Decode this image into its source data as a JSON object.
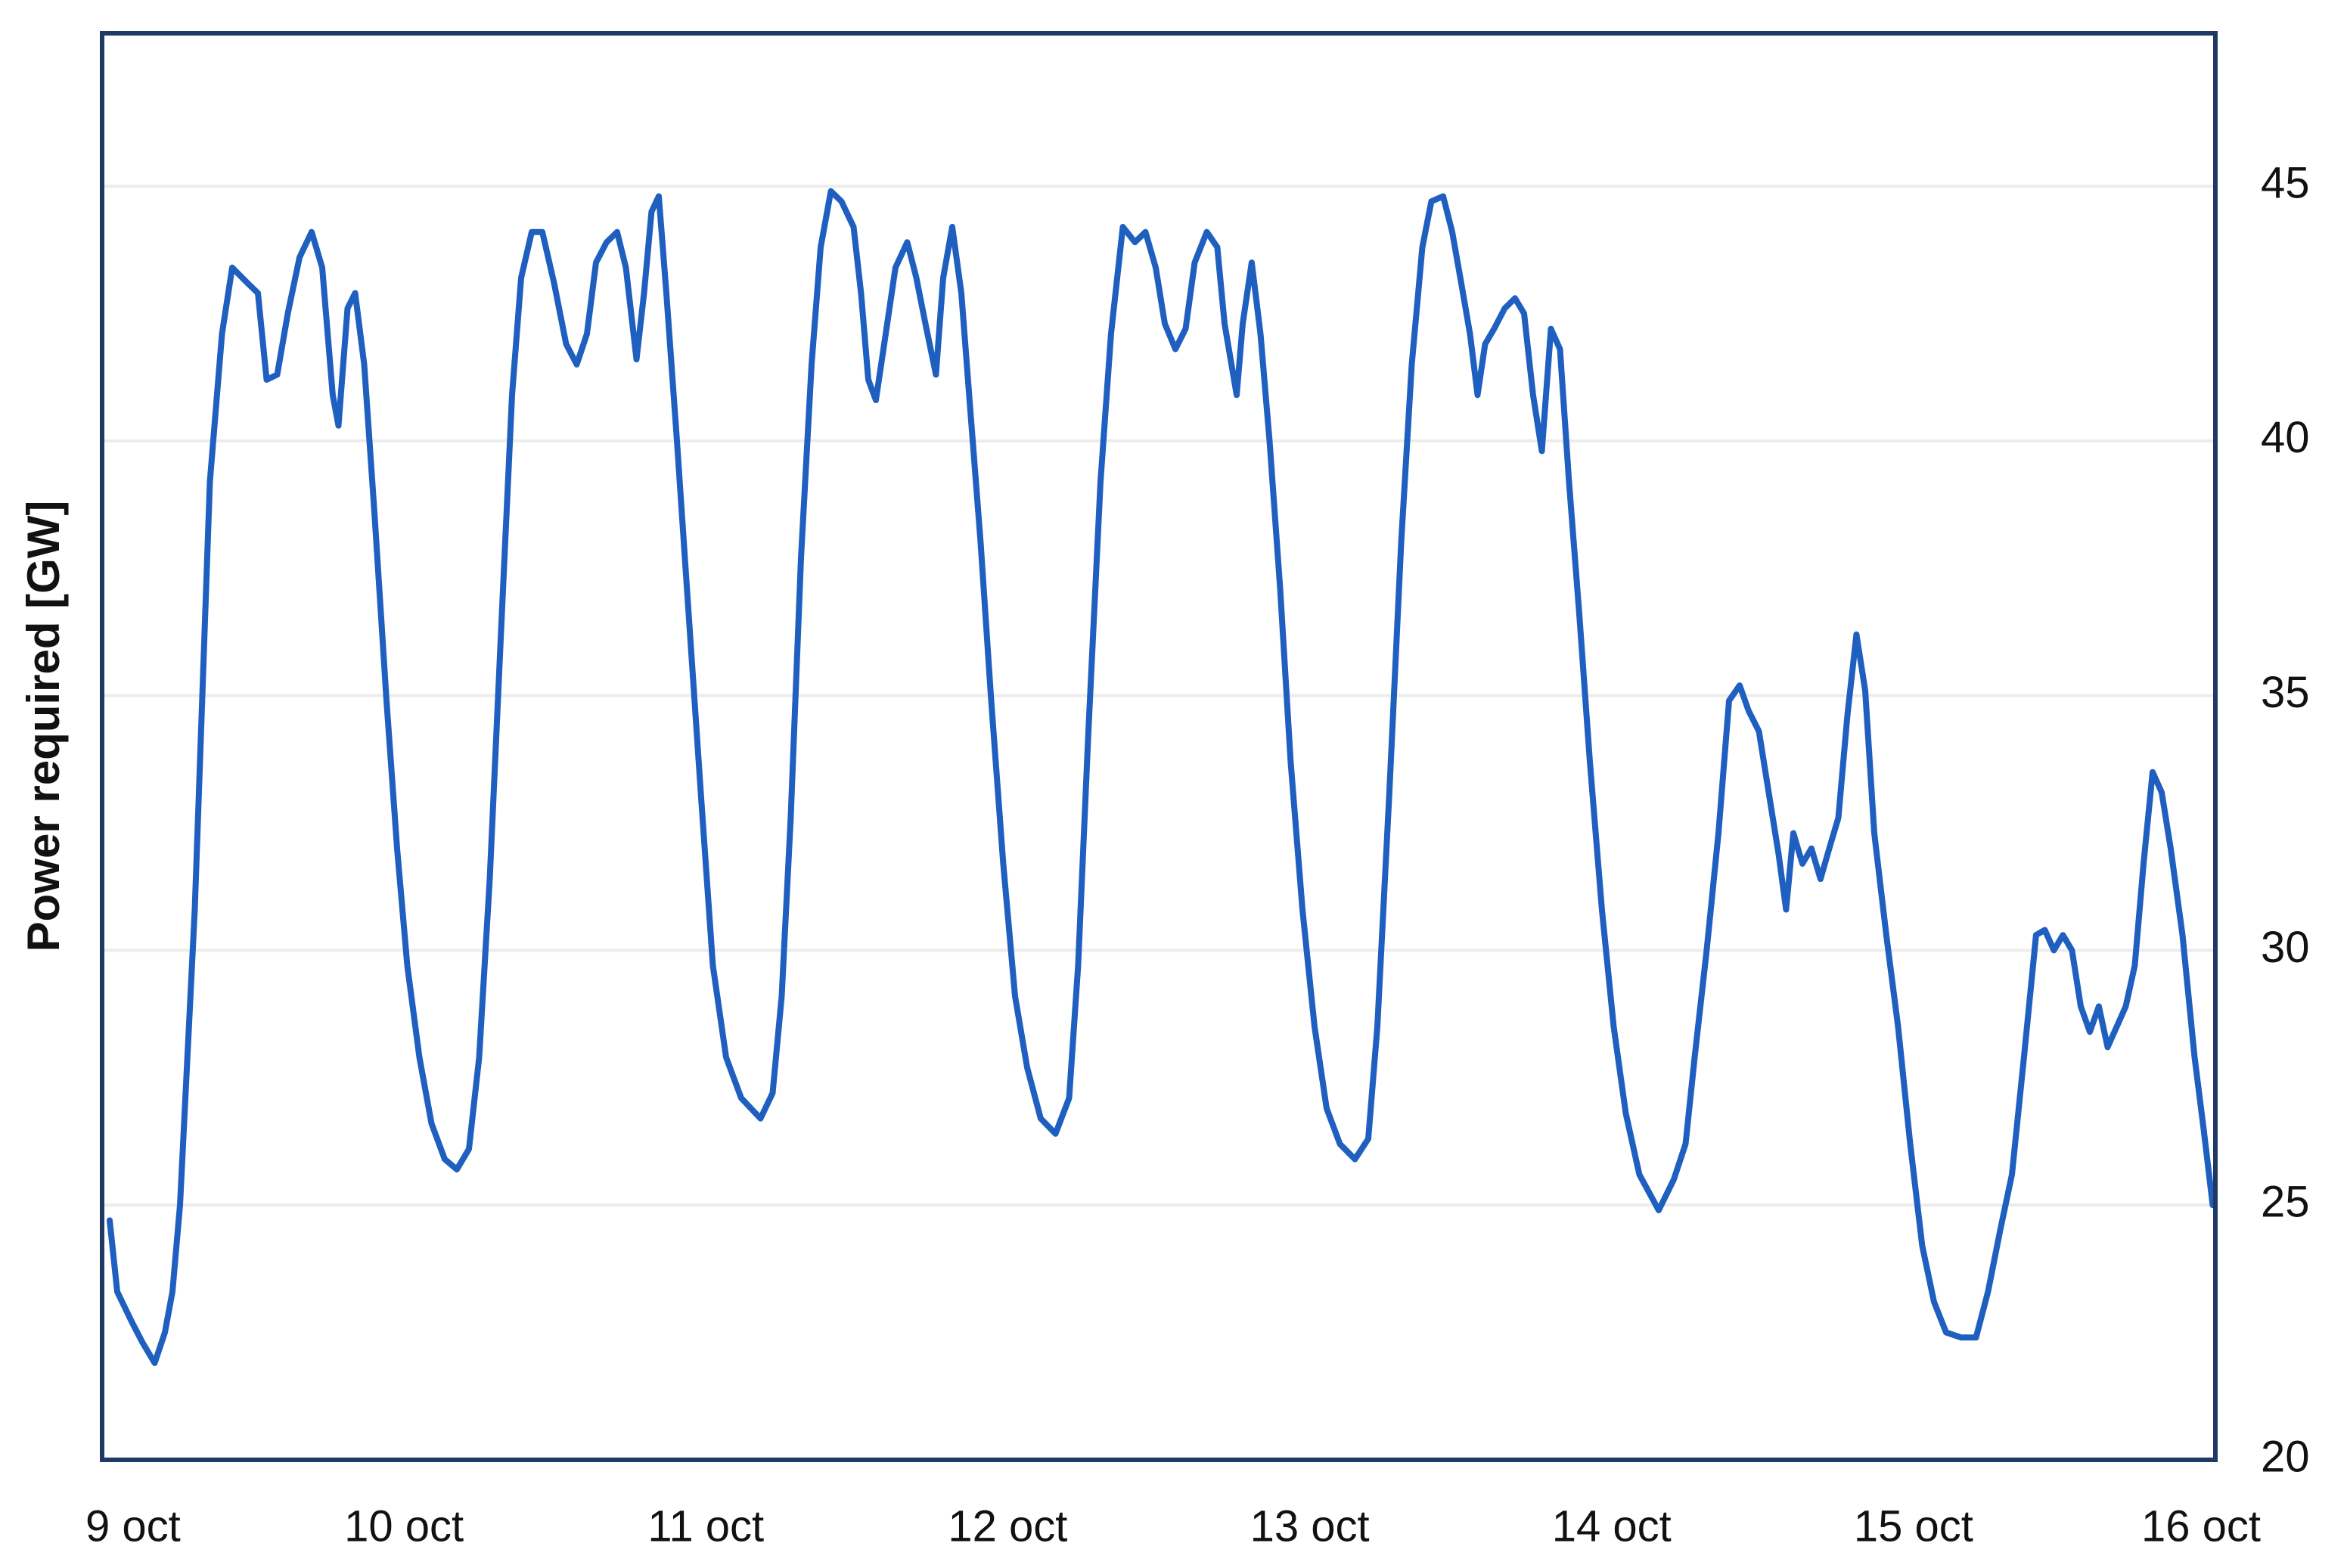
{
  "chart_data": {
    "type": "line",
    "y_label": "Power required [GW]",
    "xlim": [
      0,
      7
    ],
    "xticks": [
      {
        "value": 0,
        "label": "9 oct"
      },
      {
        "value": 1,
        "label": "10 oct"
      },
      {
        "value": 2,
        "label": "11 oct"
      },
      {
        "value": 3,
        "label": "12 oct"
      },
      {
        "value": 4,
        "label": "13 oct"
      },
      {
        "value": 5,
        "label": "14 oct"
      },
      {
        "value": 6,
        "label": "15 oct"
      },
      {
        "value": 7,
        "label": "16 oct"
      }
    ],
    "ylim": [
      20,
      48
    ],
    "yticks": [
      20,
      25,
      30,
      35,
      40,
      45
    ],
    "grid": true,
    "x": [
      0.025,
      0.05,
      0.099,
      0.134,
      0.174,
      0.208,
      0.233,
      0.258,
      0.307,
      0.357,
      0.397,
      0.431,
      0.481,
      0.516,
      0.545,
      0.58,
      0.615,
      0.654,
      0.694,
      0.729,
      0.764,
      0.783,
      0.813,
      0.838,
      0.868,
      0.902,
      0.942,
      0.977,
      1.011,
      1.051,
      1.091,
      1.135,
      1.175,
      1.215,
      1.249,
      1.284,
      1.324,
      1.358,
      1.388,
      1.423,
      1.458,
      1.497,
      1.537,
      1.572,
      1.606,
      1.636,
      1.671,
      1.706,
      1.735,
      1.77,
      1.795,
      1.82,
      1.844,
      1.869,
      1.904,
      1.943,
      1.983,
      2.023,
      2.067,
      2.117,
      2.181,
      2.221,
      2.251,
      2.281,
      2.315,
      2.35,
      2.38,
      2.414,
      2.449,
      2.489,
      2.514,
      2.538,
      2.563,
      2.598,
      2.628,
      2.667,
      2.697,
      2.727,
      2.762,
      2.786,
      2.816,
      2.846,
      2.876,
      2.91,
      2.945,
      2.985,
      3.024,
      3.064,
      3.109,
      3.158,
      3.203,
      3.233,
      3.267,
      3.307,
      3.342,
      3.381,
      3.421,
      3.456,
      3.49,
      3.52,
      3.555,
      3.589,
      3.619,
      3.659,
      3.694,
      3.718,
      3.758,
      3.778,
      3.808,
      3.837,
      3.867,
      3.902,
      3.937,
      3.976,
      4.016,
      4.056,
      4.1,
      4.15,
      4.194,
      4.224,
      4.264,
      4.303,
      4.338,
      4.373,
      4.403,
      4.442,
      4.472,
      4.502,
      4.531,
      4.556,
      4.581,
      4.611,
      4.646,
      4.68,
      4.71,
      4.74,
      4.769,
      4.799,
      4.829,
      4.859,
      4.893,
      4.928,
      4.968,
      5.007,
      5.047,
      5.092,
      5.156,
      5.206,
      5.245,
      5.275,
      5.315,
      5.354,
      5.389,
      5.424,
      5.454,
      5.488,
      5.523,
      5.553,
      5.578,
      5.602,
      5.632,
      5.662,
      5.692,
      5.721,
      5.751,
      5.781,
      5.811,
      5.84,
      5.87,
      5.91,
      5.949,
      5.989,
      6.029,
      6.068,
      6.108,
      6.158,
      6.207,
      6.247,
      6.287,
      6.326,
      6.366,
      6.406,
      6.435,
      6.465,
      6.495,
      6.525,
      6.554,
      6.584,
      6.614,
      6.643,
      6.673,
      6.703,
      6.733,
      6.762,
      6.792,
      6.822,
      6.852,
      6.891,
      6.931,
      6.961,
      6.991
    ],
    "series": [
      {
        "color": "#1f5fbf",
        "values": [
          24.7,
          23.3,
          22.7,
          22.3,
          21.9,
          22.5,
          23.3,
          25,
          30.8,
          39.2,
          42.1,
          43.4,
          43.1,
          42.9,
          41.2,
          41.3,
          42.5,
          43.6,
          44.1,
          43.4,
          40.9,
          40.3,
          42.6,
          42.9,
          41.5,
          38.6,
          34.9,
          32,
          29.7,
          27.9,
          26.6,
          25.9,
          25.7,
          26.1,
          27.9,
          31.4,
          36.6,
          40.9,
          43.2,
          44.1,
          44.1,
          43.1,
          41.9,
          41.5,
          42.1,
          43.5,
          43.9,
          44.1,
          43.4,
          41.6,
          42.9,
          44.5,
          44.8,
          42.9,
          40,
          36.6,
          33.1,
          29.7,
          27.9,
          27.1,
          26.7,
          27.2,
          29.1,
          32.6,
          37.7,
          41.5,
          43.8,
          44.9,
          44.7,
          44.2,
          42.9,
          41.2,
          40.8,
          42.2,
          43.4,
          43.9,
          43.2,
          42.3,
          41.3,
          43.2,
          44.2,
          42.9,
          40.6,
          38,
          34.9,
          31.7,
          29.1,
          27.7,
          26.7,
          26.4,
          27.1,
          29.7,
          34.3,
          39.2,
          42.1,
          44.2,
          43.9,
          44.1,
          43.4,
          42.3,
          41.8,
          42.2,
          43.5,
          44.1,
          43.8,
          42.3,
          40.9,
          42.3,
          43.5,
          42.1,
          40,
          37.1,
          33.7,
          30.8,
          28.5,
          26.9,
          26.2,
          25.9,
          26.3,
          28.5,
          33.1,
          38,
          41.5,
          43.8,
          44.7,
          44.8,
          44.1,
          43.1,
          42.1,
          40.9,
          41.9,
          42.2,
          42.6,
          42.8,
          42.5,
          40.9,
          39.8,
          42.2,
          41.8,
          39.2,
          36.6,
          33.7,
          30.8,
          28.5,
          26.8,
          25.6,
          24.9,
          25.5,
          26.2,
          27.9,
          30,
          32.3,
          34.9,
          35.2,
          34.7,
          34.3,
          33,
          31.9,
          30.8,
          32.3,
          31.7,
          32,
          31.4,
          32,
          32.6,
          34.6,
          36.2,
          35.1,
          32.3,
          30.3,
          28.5,
          26.2,
          24.2,
          23.1,
          22.5,
          22.4,
          22.4,
          23.3,
          24.5,
          25.6,
          27.9,
          30.3,
          30.4,
          30,
          30.3,
          30,
          28.9,
          28.4,
          28.9,
          28.1,
          28.5,
          28.9,
          29.7,
          31.7,
          33.5,
          33.1,
          32,
          30.3,
          27.9,
          26.5,
          25
        ]
      }
    ]
  }
}
